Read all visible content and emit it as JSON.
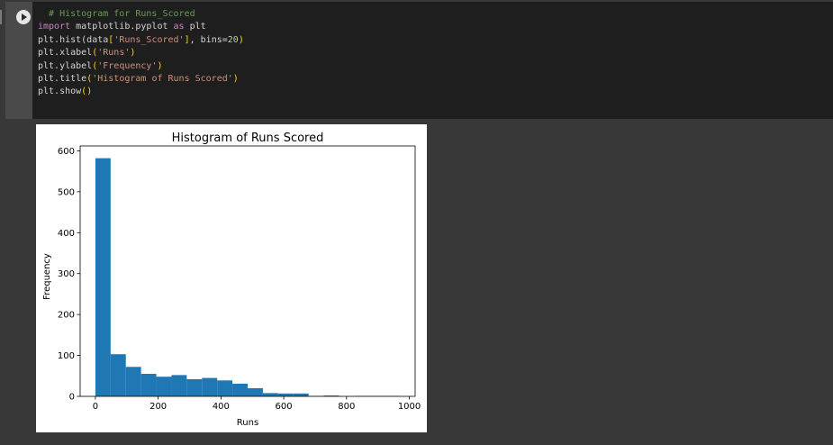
{
  "cell": {
    "run_icon": "play-circle-icon",
    "code_lines": [
      [
        {
          "t": "  # Histogram for Runs_Scored",
          "c": "comment"
        }
      ],
      [
        {
          "t": "import",
          "c": "kw"
        },
        {
          "t": " matplotlib.pyplot "
        },
        {
          "t": "as",
          "c": "kw"
        },
        {
          "t": " plt"
        }
      ],
      [
        {
          "t": "plt.hist(data"
        },
        {
          "t": "[",
          "c": "br"
        },
        {
          "t": "'Runs_Scored'",
          "c": "str"
        },
        {
          "t": "]",
          "c": "br"
        },
        {
          "t": ", bins="
        },
        {
          "t": "20",
          "c": "num"
        },
        {
          "t": ")",
          "c": "br"
        }
      ],
      [
        {
          "t": "plt.xlabel"
        },
        {
          "t": "(",
          "c": "br"
        },
        {
          "t": "'Runs'",
          "c": "str"
        },
        {
          "t": ")",
          "c": "br"
        }
      ],
      [
        {
          "t": "plt.ylabel"
        },
        {
          "t": "(",
          "c": "br"
        },
        {
          "t": "'Frequency'",
          "c": "str"
        },
        {
          "t": ")",
          "c": "br"
        }
      ],
      [
        {
          "t": "plt.title"
        },
        {
          "t": "(",
          "c": "br"
        },
        {
          "t": "'Histogram of Runs Scored'",
          "c": "str"
        },
        {
          "t": ")",
          "c": "br"
        }
      ],
      [
        {
          "t": "plt.show"
        },
        {
          "t": "()",
          "c": "br"
        }
      ]
    ]
  },
  "chart_data": {
    "type": "bar",
    "title": "Histogram of Runs Scored",
    "xlabel": "Runs",
    "ylabel": "Frequency",
    "bar_color": "#1f77b4",
    "bin_edges": [
      0,
      48.5,
      97,
      145.5,
      194,
      242.5,
      291,
      339.5,
      388,
      436.5,
      485,
      533.5,
      582,
      630.5,
      679,
      727.5,
      776,
      824.5,
      873,
      921.5,
      970
    ],
    "values": [
      582,
      103,
      72,
      55,
      48,
      52,
      42,
      45,
      39,
      31,
      20,
      8,
      7,
      7,
      1,
      2,
      0,
      1,
      1,
      1
    ],
    "xlim": [
      -48.5,
      1018.5
    ],
    "ylim": [
      0,
      612
    ],
    "xticks": [
      0,
      200,
      400,
      600,
      800,
      1000
    ],
    "yticks": [
      0,
      100,
      200,
      300,
      400,
      500,
      600
    ],
    "grid": false
  }
}
